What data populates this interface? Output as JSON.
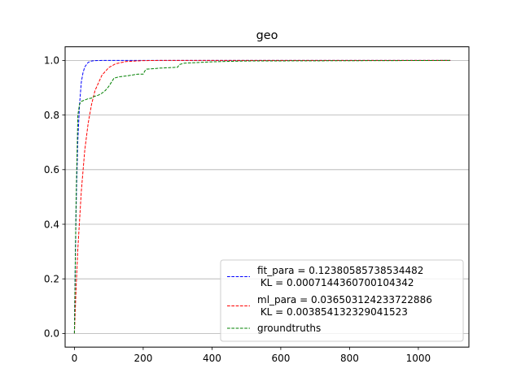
{
  "chart_data": {
    "type": "line",
    "title": "geo",
    "xlabel": "",
    "ylabel": "",
    "xlim": [
      -27,
      1147
    ],
    "ylim": [
      -0.05,
      1.05
    ],
    "xticks": [
      0,
      200,
      400,
      600,
      800,
      1000
    ],
    "yticks": [
      0.0,
      0.2,
      0.4,
      0.6,
      0.8,
      1.0
    ],
    "grid": "y-axis only",
    "legend_position": "lower-right",
    "series": [
      {
        "name": "fit_para = 0.12380585738534482\n KL = 0.0007144360700104342",
        "label_lines": [
          "fit_para = 0.12380585738534482",
          " KL = 0.0007144360700104342"
        ],
        "color": "#0000ff",
        "x": [
          0,
          3,
          6,
          10,
          15,
          20,
          25,
          30,
          40,
          50,
          60,
          80,
          100,
          1093
        ],
        "y": [
          0.0,
          0.31,
          0.52,
          0.71,
          0.84,
          0.92,
          0.955,
          0.976,
          0.993,
          0.998,
          0.9995,
          1.0,
          1.0,
          1.0
        ]
      },
      {
        "name": "ml_para = 0.036503124233722886\n KL = 0.003854132329041523",
        "label_lines": [
          "ml_para = 0.036503124233722886",
          " KL = 0.003854132329041523"
        ],
        "color": "#ff0000",
        "x": [
          0,
          5,
          10,
          20,
          30,
          40,
          50,
          60,
          80,
          100,
          120,
          150,
          200,
          250,
          1093
        ],
        "y": [
          0.0,
          0.17,
          0.31,
          0.52,
          0.67,
          0.77,
          0.84,
          0.89,
          0.946,
          0.974,
          0.988,
          0.996,
          0.9994,
          1.0,
          1.0
        ]
      },
      {
        "name": "groundtruths",
        "label_lines": [
          "groundtruths"
        ],
        "color": "#008000",
        "x": [
          0,
          5,
          10,
          15,
          20,
          30,
          40,
          50,
          55,
          70,
          80,
          90,
          100,
          110,
          115,
          130,
          150,
          170,
          185,
          200,
          205,
          210,
          250,
          300,
          305,
          320,
          400,
          500,
          1093
        ],
        "y": [
          0.0,
          0.5,
          0.8,
          0.84,
          0.85,
          0.855,
          0.86,
          0.862,
          0.867,
          0.873,
          0.88,
          0.89,
          0.905,
          0.925,
          0.935,
          0.94,
          0.943,
          0.947,
          0.95,
          0.95,
          0.962,
          0.968,
          0.972,
          0.975,
          0.985,
          0.99,
          0.995,
          0.998,
          1.0
        ]
      }
    ]
  }
}
